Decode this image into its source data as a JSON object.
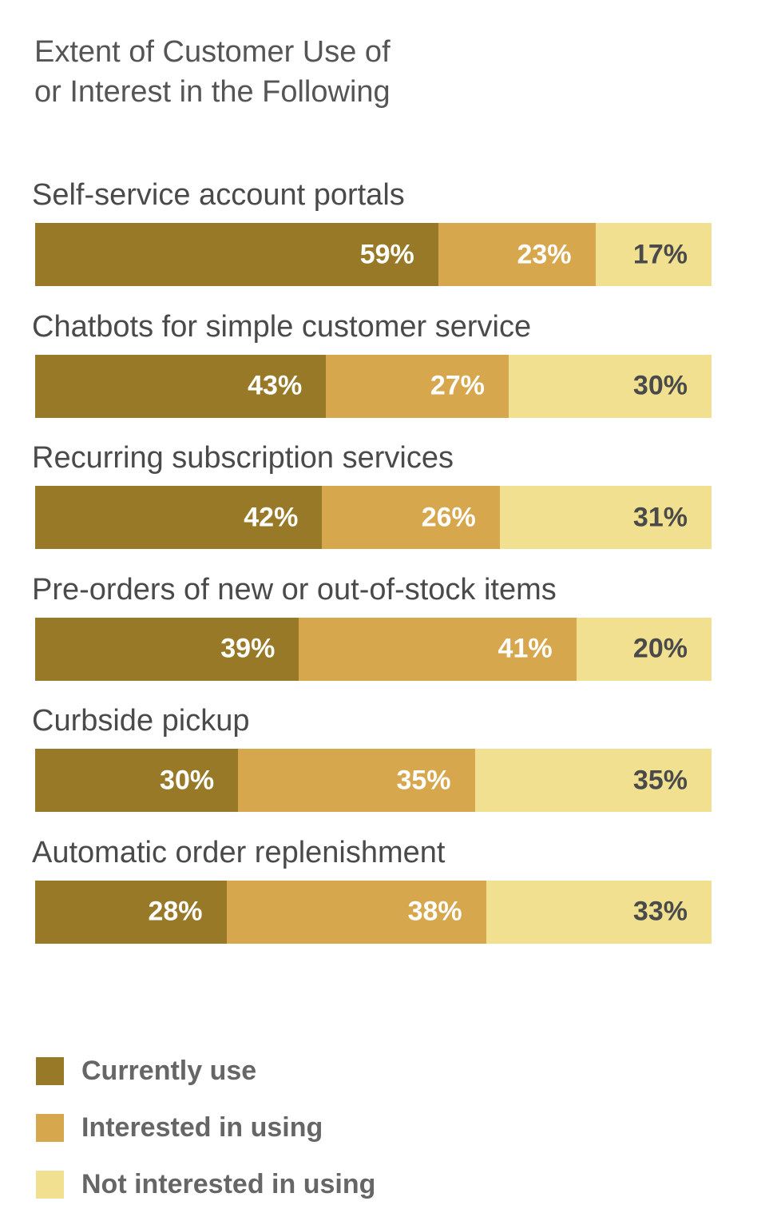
{
  "title": "Extent of Customer Use of\nor Interest in the Following",
  "chart_data": {
    "type": "bar",
    "orientation": "horizontal",
    "stacked": true,
    "title": "Extent of Customer Use of\nor Interest in the Following",
    "categories": [
      "Self-service account portals",
      "Chatbots for simple customer service",
      "Recurring subscription services",
      "Pre-orders of new or out-of-stock items",
      "Curbside pickup",
      "Automatic order replenishment"
    ],
    "series": [
      {
        "name": "Currently use",
        "color": "#977927",
        "label_color": "#ffffff",
        "values": [
          59,
          43,
          42,
          39,
          30,
          28
        ]
      },
      {
        "name": "Interested in using",
        "color": "#d7a74d",
        "label_color": "#ffffff",
        "values": [
          23,
          27,
          26,
          41,
          35,
          38
        ]
      },
      {
        "name": "Not interested in using",
        "color": "#f0e08f",
        "label_color": "#4a4a4a",
        "values": [
          17,
          30,
          31,
          20,
          35,
          33
        ]
      }
    ],
    "value_suffix": "%",
    "legend_position": "bottom-left",
    "grid": false
  }
}
